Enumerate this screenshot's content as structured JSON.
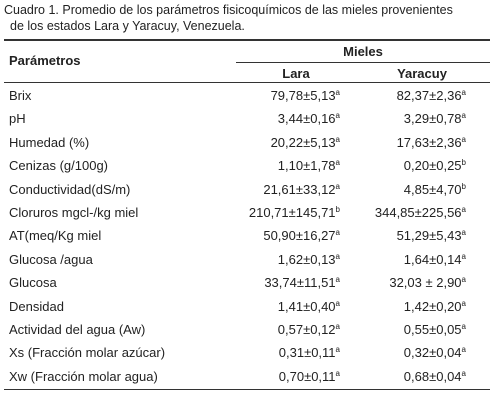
{
  "caption": [
    "Cuadro 1. Promedio de los parámetros fisicoquímicos de las mieles provenientes",
    "de los estados Lara y Yaracuy, Venezuela."
  ],
  "table": {
    "header": {
      "parameter": "Parámetros",
      "group": "Mieles",
      "columns": [
        "Lara",
        "Yaracuy"
      ]
    },
    "rows": [
      {
        "parameter": "Brix",
        "lara": {
          "value": "79,78±5,13",
          "sup": "a"
        },
        "yaracuy": {
          "value": "82,37±2,36",
          "sup": "a"
        }
      },
      {
        "parameter": "pH",
        "lara": {
          "value": "3,44±0,16",
          "sup": "a"
        },
        "yaracuy": {
          "value": "3,29±0,78",
          "sup": "a"
        }
      },
      {
        "parameter": "Humedad (%)",
        "lara": {
          "value": "20,22±5,13",
          "sup": "a"
        },
        "yaracuy": {
          "value": "17,63±2,36",
          "sup": "a"
        }
      },
      {
        "parameter": "Cenizas (g/100g)",
        "lara": {
          "value": "1,10±1,78",
          "sup": "a"
        },
        "yaracuy": {
          "value": "0,20±0,25",
          "sup": "b"
        }
      },
      {
        "parameter": "Conductividad(dS/m)",
        "lara": {
          "value": "21,61±33,12",
          "sup": "a"
        },
        "yaracuy": {
          "value": "4,85±4,70",
          "sup": "b"
        }
      },
      {
        "parameter": "Cloruros mgcl-/kg miel",
        "lara": {
          "value": "210,71±145,71",
          "sup": "b"
        },
        "yaracuy": {
          "value": "344,85±225,56",
          "sup": "a"
        }
      },
      {
        "parameter": "AT(meq/Kg miel",
        "lara": {
          "value": "50,90±16,27",
          "sup": "a"
        },
        "yaracuy": {
          "value": "51,29±5,43",
          "sup": "a"
        }
      },
      {
        "parameter": "Glucosa /agua",
        "lara": {
          "value": "1,62±0,13",
          "sup": "a"
        },
        "yaracuy": {
          "value": "1,64±0,14",
          "sup": "a"
        }
      },
      {
        "parameter": "Glucosa",
        "lara": {
          "value": "33,74±11,51",
          "sup": "a"
        },
        "yaracuy": {
          "value": "32,03 ± 2,90",
          "sup": "a"
        }
      },
      {
        "parameter": "Densidad",
        "lara": {
          "value": "1,41±0,40",
          "sup": "a"
        },
        "yaracuy": {
          "value": "1,42±0,20",
          "sup": "a"
        }
      },
      {
        "parameter": "Actividad del agua (Aw)",
        "lara": {
          "value": "0,57±0,12",
          "sup": "a"
        },
        "yaracuy": {
          "value": "0,55±0,05",
          "sup": "a"
        }
      },
      {
        "parameter": "Xs (Fracción molar azúcar)",
        "lara": {
          "value": "0,31±0,11",
          "sup": "a"
        },
        "yaracuy": {
          "value": "0,32±0,04",
          "sup": "a"
        }
      },
      {
        "parameter": "Xw (Fracción molar agua)",
        "lara": {
          "value": "0,70±0,11",
          "sup": "a"
        },
        "yaracuy": {
          "value": "0,68±0,04",
          "sup": "a"
        }
      }
    ]
  }
}
